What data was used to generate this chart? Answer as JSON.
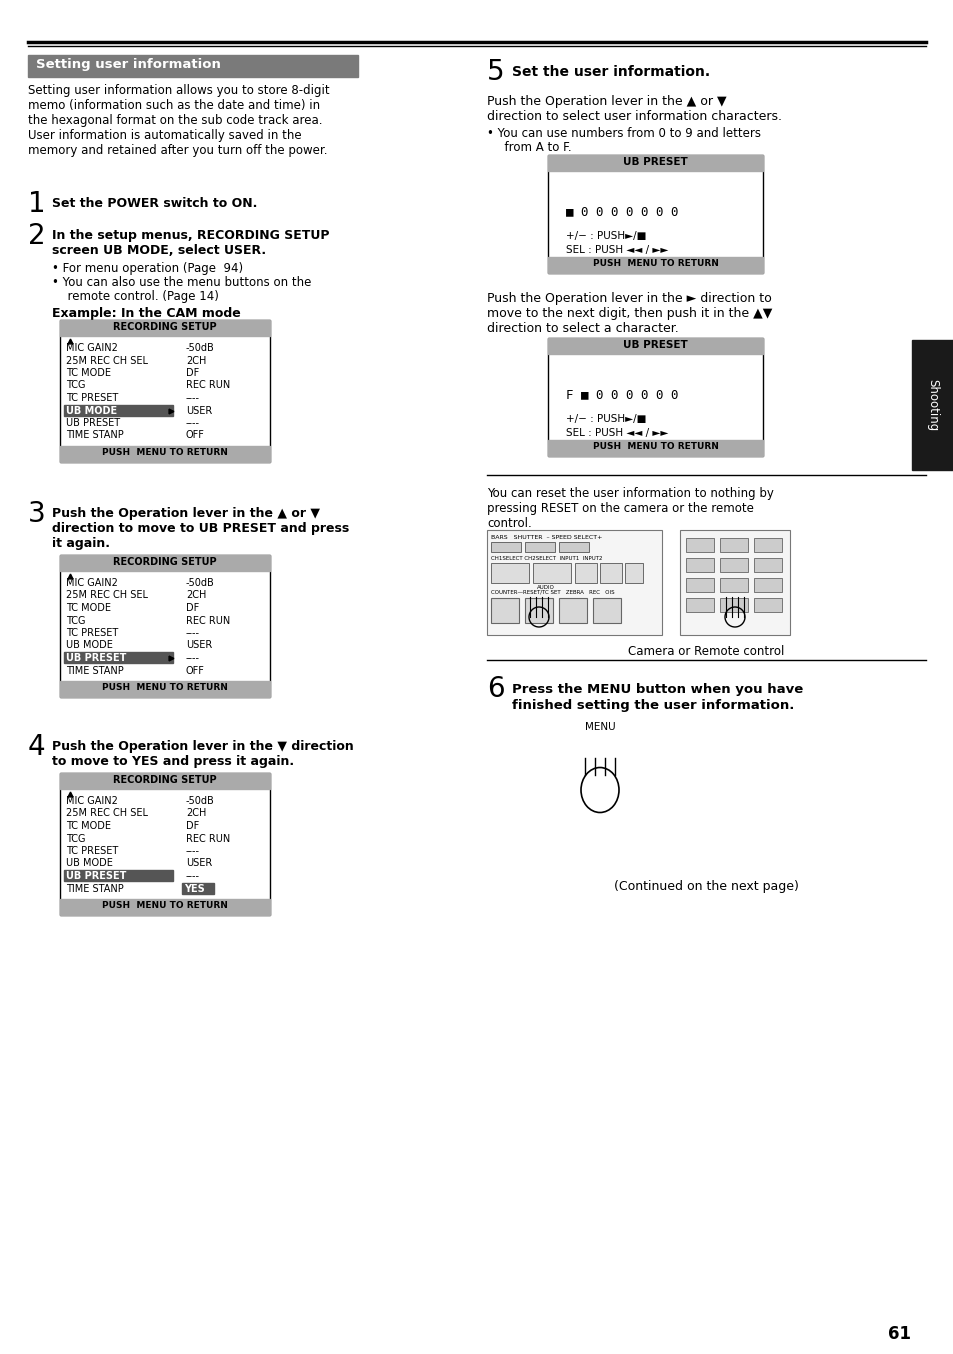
{
  "page_num": "61",
  "bg_color": "#ffffff",
  "top_bar_color": "#000000",
  "header_bg": "#808080",
  "header_text": "Setting user information",
  "header_text_color": "#ffffff",
  "right_tab_bg": "#1a1a1a",
  "right_tab_text": "Shooting",
  "right_tab_color": "#ffffff",
  "body_text_color": "#000000",
  "intro_text": "Setting user information allows you to store 8-digit\nmemo (information such as the date and time) in\nthe hexagonal format on the sub code track area.\nUser information is automatically saved in the\nmemory and retained after you turn off the power.",
  "step1_bold": "Set the POWER switch to ON.",
  "step2_bold_line1": "In the setup menus, RECORDING SETUP",
  "step2_bold_line2": "screen UB MODE, select USER.",
  "step2_bullets": [
    "For menu operation (Page  94)",
    "You can also use the menu buttons on the",
    "  remote control. (Page 14)"
  ],
  "step2_example": "Example: In the CAM mode",
  "rec_setup_title": "RECORDING SETUP",
  "rec_setup_rows1": [
    [
      "MIC GAIN2",
      "-50dB"
    ],
    [
      "25M REC CH SEL",
      "2CH"
    ],
    [
      "TC MODE",
      "DF"
    ],
    [
      "TCG",
      "REC RUN"
    ],
    [
      "TC PRESET",
      "----"
    ],
    [
      "UB MODE",
      "USER"
    ],
    [
      "UB PRESET",
      "----"
    ],
    [
      "TIME STANP",
      "OFF"
    ]
  ],
  "rec_setup_rows2": [
    [
      "MIC GAIN2",
      "-50dB"
    ],
    [
      "25M REC CH SEL",
      "2CH"
    ],
    [
      "TC MODE",
      "DF"
    ],
    [
      "TCG",
      "REC RUN"
    ],
    [
      "TC PRESET",
      "----"
    ],
    [
      "UB MODE",
      "USER"
    ],
    [
      "UB PRESET",
      "----"
    ],
    [
      "TIME STANP",
      "OFF"
    ]
  ],
  "rec_setup_rows3": [
    [
      "MIC GAIN2",
      "-50dB"
    ],
    [
      "25M REC CH SEL",
      "2CH"
    ],
    [
      "TC MODE",
      "DF"
    ],
    [
      "TCG",
      "REC RUN"
    ],
    [
      "TC PRESET",
      "----"
    ],
    [
      "UB MODE",
      "USER"
    ],
    [
      "UB PRESET",
      "----"
    ],
    [
      "TIME STANP",
      "YES"
    ]
  ],
  "rec_setup_footer": "PUSH  MENU TO RETURN",
  "step3_bold_line1": "Push the Operation lever in the ▲ or ▼",
  "step3_bold_line2": "direction to move to UB PRESET and press",
  "step3_bold_line3": "it again.",
  "step4_bold_line1": "Push the Operation lever in the ▼ direction",
  "step4_bold_line2": "to move to YES and press it again.",
  "step5_bold": "Set the user information.",
  "step5_text_line1": "Push the Operation lever in the ▲ or ▼",
  "step5_text_line2": "direction to select user information characters.",
  "step5_bullet": "You can use numbers from 0 to 9 and letters",
  "step5_bullet2": "  from A to F.",
  "ub_preset_title": "UB PRESET",
  "ub_preset_display1": "■ 0 0 0 0 0 0 0",
  "ub_preset_hints_line1": "+/− : PUSH►/■",
  "ub_preset_hints_line2": "SEL : PUSH ◄◄ / ►►",
  "ub_preset_footer": "PUSH  MENU TO RETURN",
  "step5_text2_line1": "Push the Operation lever in the ► direction to",
  "step5_text2_line2": "move to the next digit, then push it in the ▲▼",
  "step5_text2_line3": "direction to select a character.",
  "ub_preset_display2": "F ■ 0 0 0 0 0 0",
  "reset_line1": "You can reset the user information to nothing by",
  "reset_line2": "pressing RESET on the camera or the remote",
  "reset_line3": "control.",
  "camera_label": "Camera or Remote control",
  "step6_bold_line1": "Press the MENU button when you have",
  "step6_bold_line2": "finished setting the user information.",
  "menu_label": "MENU",
  "continued_text": "(Continued on the next page)"
}
